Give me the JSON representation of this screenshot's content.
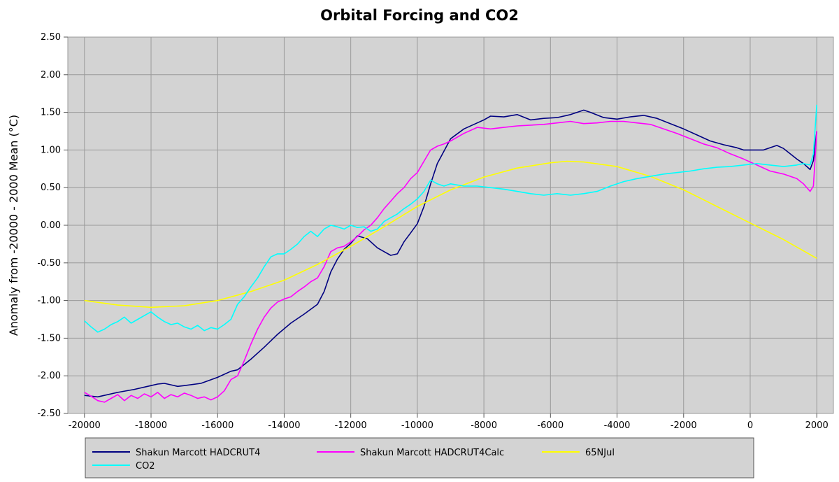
{
  "chart_data": {
    "type": "line",
    "title": "Orbital Forcing and CO2",
    "xlabel": "",
    "ylabel": "Anomaly from -20000 - 2000 Mean (°C)",
    "xlim": [
      -20500,
      2500
    ],
    "ylim": [
      -2.5,
      2.5
    ],
    "xticks": [
      -20000,
      -18000,
      -16000,
      -14000,
      -12000,
      -10000,
      -8000,
      -6000,
      -4000,
      -2000,
      0,
      2000
    ],
    "xtick_labels": [
      "-20000",
      "-18000",
      "-16000",
      "-14000",
      "-12000",
      "-10000",
      "-8000",
      "-6000",
      "-4000",
      "-2000",
      "0",
      "2000"
    ],
    "yticks": [
      -2.5,
      -2.0,
      -1.5,
      -1.0,
      -0.5,
      0.0,
      0.5,
      1.0,
      1.5,
      2.0,
      2.5
    ],
    "ytick_labels": [
      "-2.50",
      "-2.00",
      "-1.50",
      "-1.00",
      "-0.50",
      "0.00",
      "0.50",
      "1.00",
      "1.50",
      "2.00",
      "2.50"
    ],
    "grid": true,
    "legend_position": "bottom",
    "plot_background": "#d3d3d3",
    "series": [
      {
        "name": "Shakun Marcott HADCRUT4",
        "color": "#000080",
        "x": [
          -20000,
          -19600,
          -19000,
          -18500,
          -18000,
          -17800,
          -17600,
          -17400,
          -17200,
          -17000,
          -16500,
          -16000,
          -15600,
          -15400,
          -15000,
          -14600,
          -14200,
          -13800,
          -13400,
          -13000,
          -12800,
          -12600,
          -12400,
          -12200,
          -12000,
          -11800,
          -11500,
          -11200,
          -11000,
          -10800,
          -10600,
          -10400,
          -10200,
          -10000,
          -9800,
          -9600,
          -9400,
          -9000,
          -8600,
          -8200,
          -8000,
          -7800,
          -7400,
          -7000,
          -6600,
          -6200,
          -5800,
          -5400,
          -5200,
          -5000,
          -4800,
          -4400,
          -4000,
          -3600,
          -3200,
          -2800,
          -2400,
          -2000,
          -1600,
          -1200,
          -800,
          -400,
          -200,
          0,
          400,
          800,
          1000,
          1200,
          1400,
          1600,
          1800,
          1900,
          2000
        ],
        "y": [
          -2.26,
          -2.28,
          -2.22,
          -2.18,
          -2.13,
          -2.11,
          -2.1,
          -2.12,
          -2.14,
          -2.13,
          -2.1,
          -2.02,
          -1.94,
          -1.92,
          -1.78,
          -1.62,
          -1.45,
          -1.3,
          -1.18,
          -1.05,
          -0.88,
          -0.62,
          -0.45,
          -0.32,
          -0.24,
          -0.14,
          -0.18,
          -0.3,
          -0.35,
          -0.4,
          -0.38,
          -0.22,
          -0.1,
          0.02,
          0.25,
          0.55,
          0.82,
          1.15,
          1.28,
          1.36,
          1.4,
          1.45,
          1.44,
          1.47,
          1.4,
          1.42,
          1.43,
          1.47,
          1.5,
          1.53,
          1.5,
          1.43,
          1.41,
          1.44,
          1.46,
          1.42,
          1.35,
          1.28,
          1.2,
          1.12,
          1.07,
          1.03,
          1.0,
          1.0,
          1.0,
          1.06,
          1.02,
          0.95,
          0.88,
          0.82,
          0.74,
          0.86,
          1.25
        ]
      },
      {
        "name": "Shakun Marcott HADCRUT4Calc",
        "color": "#ff00ff",
        "x": [
          -20000,
          -19800,
          -19600,
          -19400,
          -19200,
          -19000,
          -18800,
          -18600,
          -18400,
          -18200,
          -18000,
          -17800,
          -17600,
          -17400,
          -17200,
          -17000,
          -16800,
          -16600,
          -16400,
          -16200,
          -16000,
          -15800,
          -15600,
          -15400,
          -15200,
          -15000,
          -14800,
          -14600,
          -14400,
          -14200,
          -14000,
          -13800,
          -13600,
          -13400,
          -13200,
          -13000,
          -12800,
          -12600,
          -12400,
          -12200,
          -12000,
          -11800,
          -11600,
          -11400,
          -11200,
          -11000,
          -10800,
          -10600,
          -10400,
          -10200,
          -10000,
          -9800,
          -9600,
          -9400,
          -9200,
          -9000,
          -8600,
          -8200,
          -7800,
          -7400,
          -7000,
          -6600,
          -6200,
          -5800,
          -5400,
          -5000,
          -4600,
          -4200,
          -3800,
          -3400,
          -3000,
          -2600,
          -2200,
          -1800,
          -1400,
          -1000,
          -600,
          -200,
          200,
          600,
          1000,
          1400,
          1600,
          1800,
          1900,
          2000
        ],
        "y": [
          -2.22,
          -2.27,
          -2.33,
          -2.35,
          -2.3,
          -2.25,
          -2.33,
          -2.26,
          -2.3,
          -2.24,
          -2.28,
          -2.22,
          -2.3,
          -2.25,
          -2.28,
          -2.23,
          -2.26,
          -2.3,
          -2.28,
          -2.32,
          -2.28,
          -2.2,
          -2.05,
          -2.0,
          -1.8,
          -1.58,
          -1.38,
          -1.22,
          -1.1,
          -1.02,
          -0.98,
          -0.95,
          -0.88,
          -0.82,
          -0.75,
          -0.7,
          -0.55,
          -0.35,
          -0.3,
          -0.28,
          -0.22,
          -0.15,
          -0.06,
          0.0,
          0.1,
          0.22,
          0.32,
          0.42,
          0.5,
          0.62,
          0.7,
          0.85,
          1.0,
          1.05,
          1.08,
          1.12,
          1.22,
          1.3,
          1.28,
          1.3,
          1.32,
          1.33,
          1.34,
          1.36,
          1.38,
          1.35,
          1.36,
          1.38,
          1.38,
          1.36,
          1.34,
          1.28,
          1.22,
          1.15,
          1.08,
          1.03,
          0.95,
          0.88,
          0.8,
          0.72,
          0.68,
          0.62,
          0.55,
          0.45,
          0.52,
          1.25
        ]
      },
      {
        "name": "65NJul",
        "color": "#ffff00",
        "x": [
          -20000,
          -19000,
          -18000,
          -17000,
          -16000,
          -15000,
          -14000,
          -13000,
          -12000,
          -11000,
          -10000,
          -9000,
          -8000,
          -7000,
          -6000,
          -5500,
          -5000,
          -4000,
          -3000,
          -2000,
          -1000,
          0,
          1000,
          2000
        ],
        "y": [
          -1.0,
          -1.06,
          -1.09,
          -1.07,
          -1.0,
          -0.88,
          -0.73,
          -0.52,
          -0.28,
          -0.02,
          0.25,
          0.47,
          0.64,
          0.76,
          0.83,
          0.85,
          0.84,
          0.78,
          0.65,
          0.47,
          0.25,
          0.03,
          -0.19,
          -0.44
        ]
      },
      {
        "name": "CO2",
        "color": "#00ffff",
        "x": [
          -20000,
          -19800,
          -19600,
          -19400,
          -19200,
          -19000,
          -18800,
          -18600,
          -18400,
          -18200,
          -18000,
          -17800,
          -17600,
          -17400,
          -17200,
          -17000,
          -16800,
          -16600,
          -16400,
          -16200,
          -16000,
          -15800,
          -15600,
          -15400,
          -15200,
          -15000,
          -14800,
          -14600,
          -14400,
          -14200,
          -14000,
          -13800,
          -13600,
          -13400,
          -13200,
          -13000,
          -12800,
          -12600,
          -12400,
          -12200,
          -12000,
          -11800,
          -11600,
          -11400,
          -11200,
          -11000,
          -10800,
          -10600,
          -10400,
          -10200,
          -10000,
          -9800,
          -9600,
          -9400,
          -9200,
          -9000,
          -8600,
          -8200,
          -7800,
          -7400,
          -7000,
          -6600,
          -6200,
          -5800,
          -5400,
          -5000,
          -4600,
          -4200,
          -3800,
          -3400,
          -3000,
          -2600,
          -2200,
          -1800,
          -1400,
          -1000,
          -600,
          -200,
          200,
          600,
          1000,
          1400,
          1600,
          1800,
          1900,
          2000
        ],
        "y": [
          -1.27,
          -1.35,
          -1.42,
          -1.38,
          -1.32,
          -1.28,
          -1.22,
          -1.3,
          -1.25,
          -1.2,
          -1.15,
          -1.22,
          -1.28,
          -1.32,
          -1.3,
          -1.35,
          -1.38,
          -1.33,
          -1.4,
          -1.36,
          -1.38,
          -1.32,
          -1.25,
          -1.05,
          -0.95,
          -0.82,
          -0.7,
          -0.55,
          -0.42,
          -0.38,
          -0.38,
          -0.32,
          -0.25,
          -0.15,
          -0.08,
          -0.15,
          -0.05,
          0.0,
          -0.02,
          -0.05,
          0.0,
          -0.03,
          -0.02,
          -0.08,
          -0.05,
          0.05,
          0.1,
          0.15,
          0.22,
          0.28,
          0.35,
          0.45,
          0.6,
          0.55,
          0.52,
          0.55,
          0.52,
          0.52,
          0.5,
          0.48,
          0.45,
          0.42,
          0.4,
          0.42,
          0.4,
          0.42,
          0.45,
          0.52,
          0.58,
          0.62,
          0.65,
          0.68,
          0.7,
          0.72,
          0.75,
          0.77,
          0.78,
          0.8,
          0.82,
          0.8,
          0.78,
          0.8,
          0.82,
          0.8,
          0.95,
          1.6
        ]
      }
    ]
  }
}
